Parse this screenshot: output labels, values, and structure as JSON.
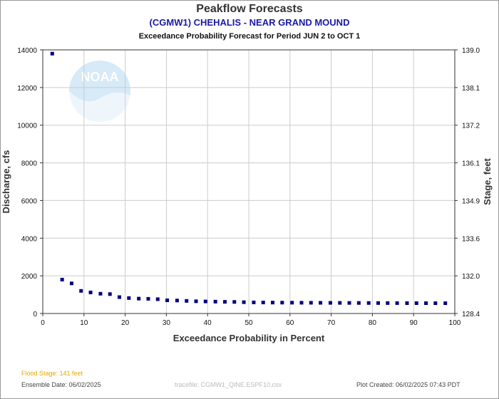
{
  "header": {
    "title": "Peakflow Forecasts",
    "station": "(CGMW1) CHEHALIS - NEAR GRAND MOUND",
    "period": "Exceedance Probability Forecast for Period JUN 2 to OCT 1"
  },
  "footer": {
    "flood_stage": "Flood Stage: 141 feet",
    "ensemble_date": "Ensemble Date: 06/02/2025",
    "tracefile": "tracefile: CGMW1_QINE.ESPF10.csv",
    "plot_created": "Plot Created: 06/02/2025 07:43 PDT"
  },
  "colors": {
    "marker": "#000080",
    "grid": "#cccccc",
    "flood_stage": "#e8a800",
    "station": "#1a1aa6"
  },
  "watermark": {
    "logo": "NOAA"
  },
  "chart_data": {
    "type": "scatter",
    "xlabel": "Exceedance Probability in Percent",
    "ylabel": "Discharge, cfs",
    "y2label": "Stage, feet",
    "xlim": [
      0,
      100
    ],
    "ylim": [
      0,
      14000
    ],
    "grid": true,
    "xticks": [
      "0",
      "10",
      "20",
      "30",
      "40",
      "50",
      "60",
      "70",
      "80",
      "90",
      "100"
    ],
    "yticks": [
      "0",
      "2000",
      "4000",
      "6000",
      "8000",
      "10000",
      "12000",
      "14000"
    ],
    "y2ticks": [
      "128.4",
      "132.0",
      "133.6",
      "134.9",
      "136.1",
      "137.2",
      "138.1",
      "139.0"
    ],
    "series": [
      {
        "x": [
          2.3,
          4.7,
          7.0,
          9.3,
          11.6,
          14.0,
          16.3,
          18.6,
          20.9,
          23.3,
          25.6,
          27.9,
          30.2,
          32.6,
          34.9,
          37.2,
          39.5,
          41.9,
          44.2,
          46.5,
          48.8,
          51.2,
          53.5,
          55.8,
          58.1,
          60.5,
          62.8,
          65.1,
          67.4,
          69.8,
          72.1,
          74.4,
          76.7,
          79.1,
          81.4,
          83.7,
          86.0,
          88.4,
          90.7,
          93.0,
          95.3,
          97.7
        ],
        "y": [
          13800,
          1800,
          1600,
          1200,
          1120,
          1050,
          1030,
          870,
          820,
          790,
          780,
          760,
          700,
          690,
          670,
          650,
          640,
          630,
          620,
          615,
          600,
          590,
          585,
          580,
          578,
          575,
          572,
          570,
          568,
          566,
          564,
          562,
          560,
          558,
          556,
          554,
          552,
          550,
          549,
          548,
          547,
          546
        ]
      }
    ]
  }
}
